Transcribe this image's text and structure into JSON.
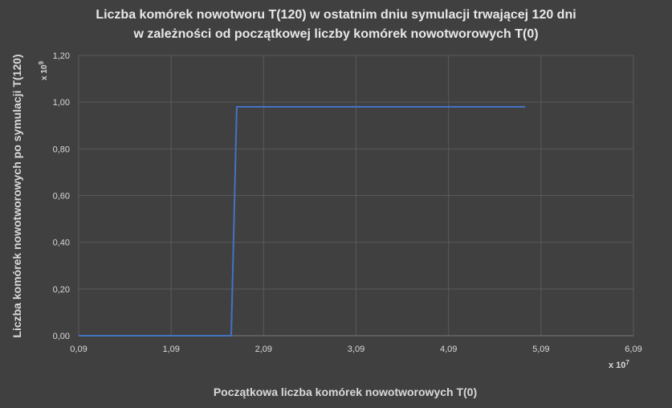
{
  "chart_data": {
    "type": "line",
    "title_line1": "Liczba komórek nowotworu T(120) w ostatnim dniu symulacji trwającej 120 dni",
    "title_line2": "w zależności od początkowej liczby komórek nowotworowych T(0)",
    "xlabel": "Początkowa liczba komórek nowotworowych T(0)",
    "ylabel": "Liczba komórek nowotworowych po symulacji T(120)",
    "x_scale_label": "x 10",
    "x_scale_exp": "7",
    "y_scale_label": "x 10",
    "y_scale_exp": "9",
    "xlim": [
      0.09,
      6.09
    ],
    "ylim": [
      0,
      1.2
    ],
    "x_ticks": [
      0.09,
      1.09,
      2.09,
      3.09,
      4.09,
      5.09,
      6.09
    ],
    "x_tick_labels": [
      "0,09",
      "1,09",
      "2,09",
      "3,09",
      "4,09",
      "5,09",
      "6,09"
    ],
    "y_ticks": [
      0,
      0.2,
      0.4,
      0.6,
      0.8,
      1.0,
      1.2
    ],
    "y_tick_labels": [
      "0,00",
      "0,20",
      "0,40",
      "0,60",
      "0,80",
      "1,00",
      "1,20"
    ],
    "grid": true,
    "line_color": "#4472c4",
    "series": [
      {
        "x": [
          0.09,
          1.74,
          1.8,
          4.92
        ],
        "y": [
          0.0,
          0.0,
          0.98,
          0.98
        ]
      }
    ]
  }
}
